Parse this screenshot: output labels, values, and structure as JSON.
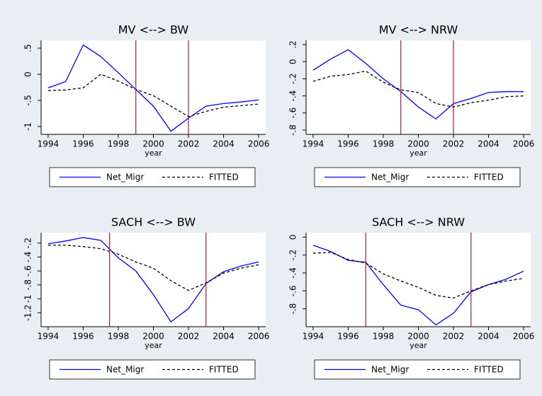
{
  "chart_data": [
    {
      "type": "line",
      "title": "MV <--> BW",
      "x_label": "year",
      "x": [
        1994,
        1995,
        1996,
        1997,
        1998,
        1999,
        2000,
        2001,
        2002,
        2003,
        2004,
        2005,
        2006
      ],
      "xlim": [
        1993.6,
        2006.4
      ],
      "xticks": [
        1994,
        1996,
        1998,
        2000,
        2002,
        2004,
        2006
      ],
      "ylim": [
        -1.15,
        0.65
      ],
      "yticks": [
        {
          "value": 0.5,
          "label": ".5"
        },
        0,
        {
          "value": -0.5,
          "label": "-.5"
        },
        -1
      ],
      "vlines": [
        1999,
        2002
      ],
      "vline_color": "#a3203c",
      "series": [
        {
          "name": "Net_Migr",
          "color": "#0000ff",
          "values": [
            -0.26,
            -0.14,
            0.56,
            0.34,
            0.03,
            -0.29,
            -0.61,
            -1.09,
            -0.84,
            -0.61,
            -0.56,
            -0.53,
            -0.49
          ]
        },
        {
          "name": "FITTED",
          "color": "#000000",
          "dashed": true,
          "values": [
            -0.31,
            -0.3,
            -0.26,
            0.0,
            -0.13,
            -0.29,
            -0.41,
            -0.61,
            -0.81,
            -0.71,
            -0.63,
            -0.6,
            -0.57
          ]
        }
      ]
    },
    {
      "type": "line",
      "title": "MV <--> NRW",
      "x_label": "year",
      "x": [
        1994,
        1995,
        1996,
        1997,
        1998,
        1999,
        2000,
        2001,
        2002,
        2003,
        2004,
        2005,
        2006
      ],
      "xlim": [
        1993.6,
        2006.4
      ],
      "xticks": [
        1994,
        1996,
        1998,
        2000,
        2002,
        2004,
        2006
      ],
      "ylim": [
        -0.85,
        0.25
      ],
      "yticks": [
        {
          "value": 0.2,
          "label": ".2"
        },
        0,
        {
          "value": -0.2,
          "label": "-.2"
        },
        {
          "value": -0.4,
          "label": "-.4"
        },
        {
          "value": -0.6,
          "label": "-.6"
        },
        {
          "value": -0.8,
          "label": "-.8"
        }
      ],
      "vlines": [
        1999,
        2002
      ],
      "vline_color": "#a3203c",
      "series": [
        {
          "name": "Net_Migr",
          "color": "#0000ff",
          "values": [
            -0.1,
            0.03,
            0.14,
            -0.02,
            -0.2,
            -0.35,
            -0.53,
            -0.67,
            -0.49,
            -0.43,
            -0.36,
            -0.35,
            -0.35
          ]
        },
        {
          "name": "FITTED",
          "color": "#000000",
          "dashed": true,
          "values": [
            -0.23,
            -0.17,
            -0.15,
            -0.11,
            -0.24,
            -0.33,
            -0.36,
            -0.49,
            -0.53,
            -0.48,
            -0.45,
            -0.41,
            -0.4
          ]
        }
      ]
    },
    {
      "type": "line",
      "title": "SACH <--> BW",
      "x_label": "year",
      "x": [
        1994,
        1995,
        1996,
        1997,
        1998,
        1999,
        2000,
        2001,
        2002,
        2003,
        2004,
        2005,
        2006
      ],
      "xlim": [
        1993.6,
        2006.4
      ],
      "xticks": [
        1994,
        1996,
        1998,
        2000,
        2002,
        2004,
        2006
      ],
      "ylim": [
        -1.4,
        -0.05
      ],
      "yticks": [
        {
          "value": -0.2,
          "label": "-.2"
        },
        {
          "value": -0.4,
          "label": "-.4"
        },
        {
          "value": -0.6,
          "label": "-.6"
        },
        {
          "value": -0.8,
          "label": "-.8"
        },
        -1,
        -1.2
      ],
      "vlines": [
        1997.5,
        2003
      ],
      "vline_color": "#a3203c",
      "series": [
        {
          "name": "Net_Migr",
          "color": "#0000ff",
          "values": [
            -0.21,
            -0.17,
            -0.12,
            -0.16,
            -0.41,
            -0.6,
            -0.94,
            -1.33,
            -1.14,
            -0.78,
            -0.61,
            -0.53,
            -0.47
          ]
        },
        {
          "name": "FITTED",
          "color": "#000000",
          "dashed": true,
          "values": [
            -0.23,
            -0.23,
            -0.25,
            -0.28,
            -0.36,
            -0.47,
            -0.56,
            -0.74,
            -0.88,
            -0.77,
            -0.63,
            -0.56,
            -0.51
          ]
        }
      ]
    },
    {
      "type": "line",
      "title": "SACH <--> NRW",
      "x_label": "year",
      "x": [
        1994,
        1995,
        1996,
        1997,
        1998,
        1999,
        2000,
        2001,
        2002,
        2003,
        2004,
        2005,
        2006
      ],
      "xlim": [
        1993.6,
        2006.4
      ],
      "xticks": [
        1994,
        1996,
        1998,
        2000,
        2002,
        2004,
        2006
      ],
      "ylim": [
        -1.0,
        0.05
      ],
      "yticks": [
        0,
        {
          "value": -0.2,
          "label": "-.2"
        },
        {
          "value": -0.4,
          "label": "-.4"
        },
        {
          "value": -0.6,
          "label": "-.6"
        },
        {
          "value": -0.8,
          "label": "-.8"
        }
      ],
      "vlines": [
        1997,
        2003
      ],
      "vline_color": "#a3203c",
      "series": [
        {
          "name": "Net_Migr",
          "color": "#0000ff",
          "values": [
            -0.09,
            -0.16,
            -0.26,
            -0.28,
            -0.53,
            -0.76,
            -0.81,
            -0.98,
            -0.85,
            -0.61,
            -0.53,
            -0.47,
            -0.38
          ]
        },
        {
          "name": "FITTED",
          "color": "#000000",
          "dashed": true,
          "values": [
            -0.18,
            -0.17,
            -0.25,
            -0.29,
            -0.41,
            -0.49,
            -0.56,
            -0.65,
            -0.68,
            -0.6,
            -0.53,
            -0.49,
            -0.46
          ]
        }
      ]
    }
  ]
}
